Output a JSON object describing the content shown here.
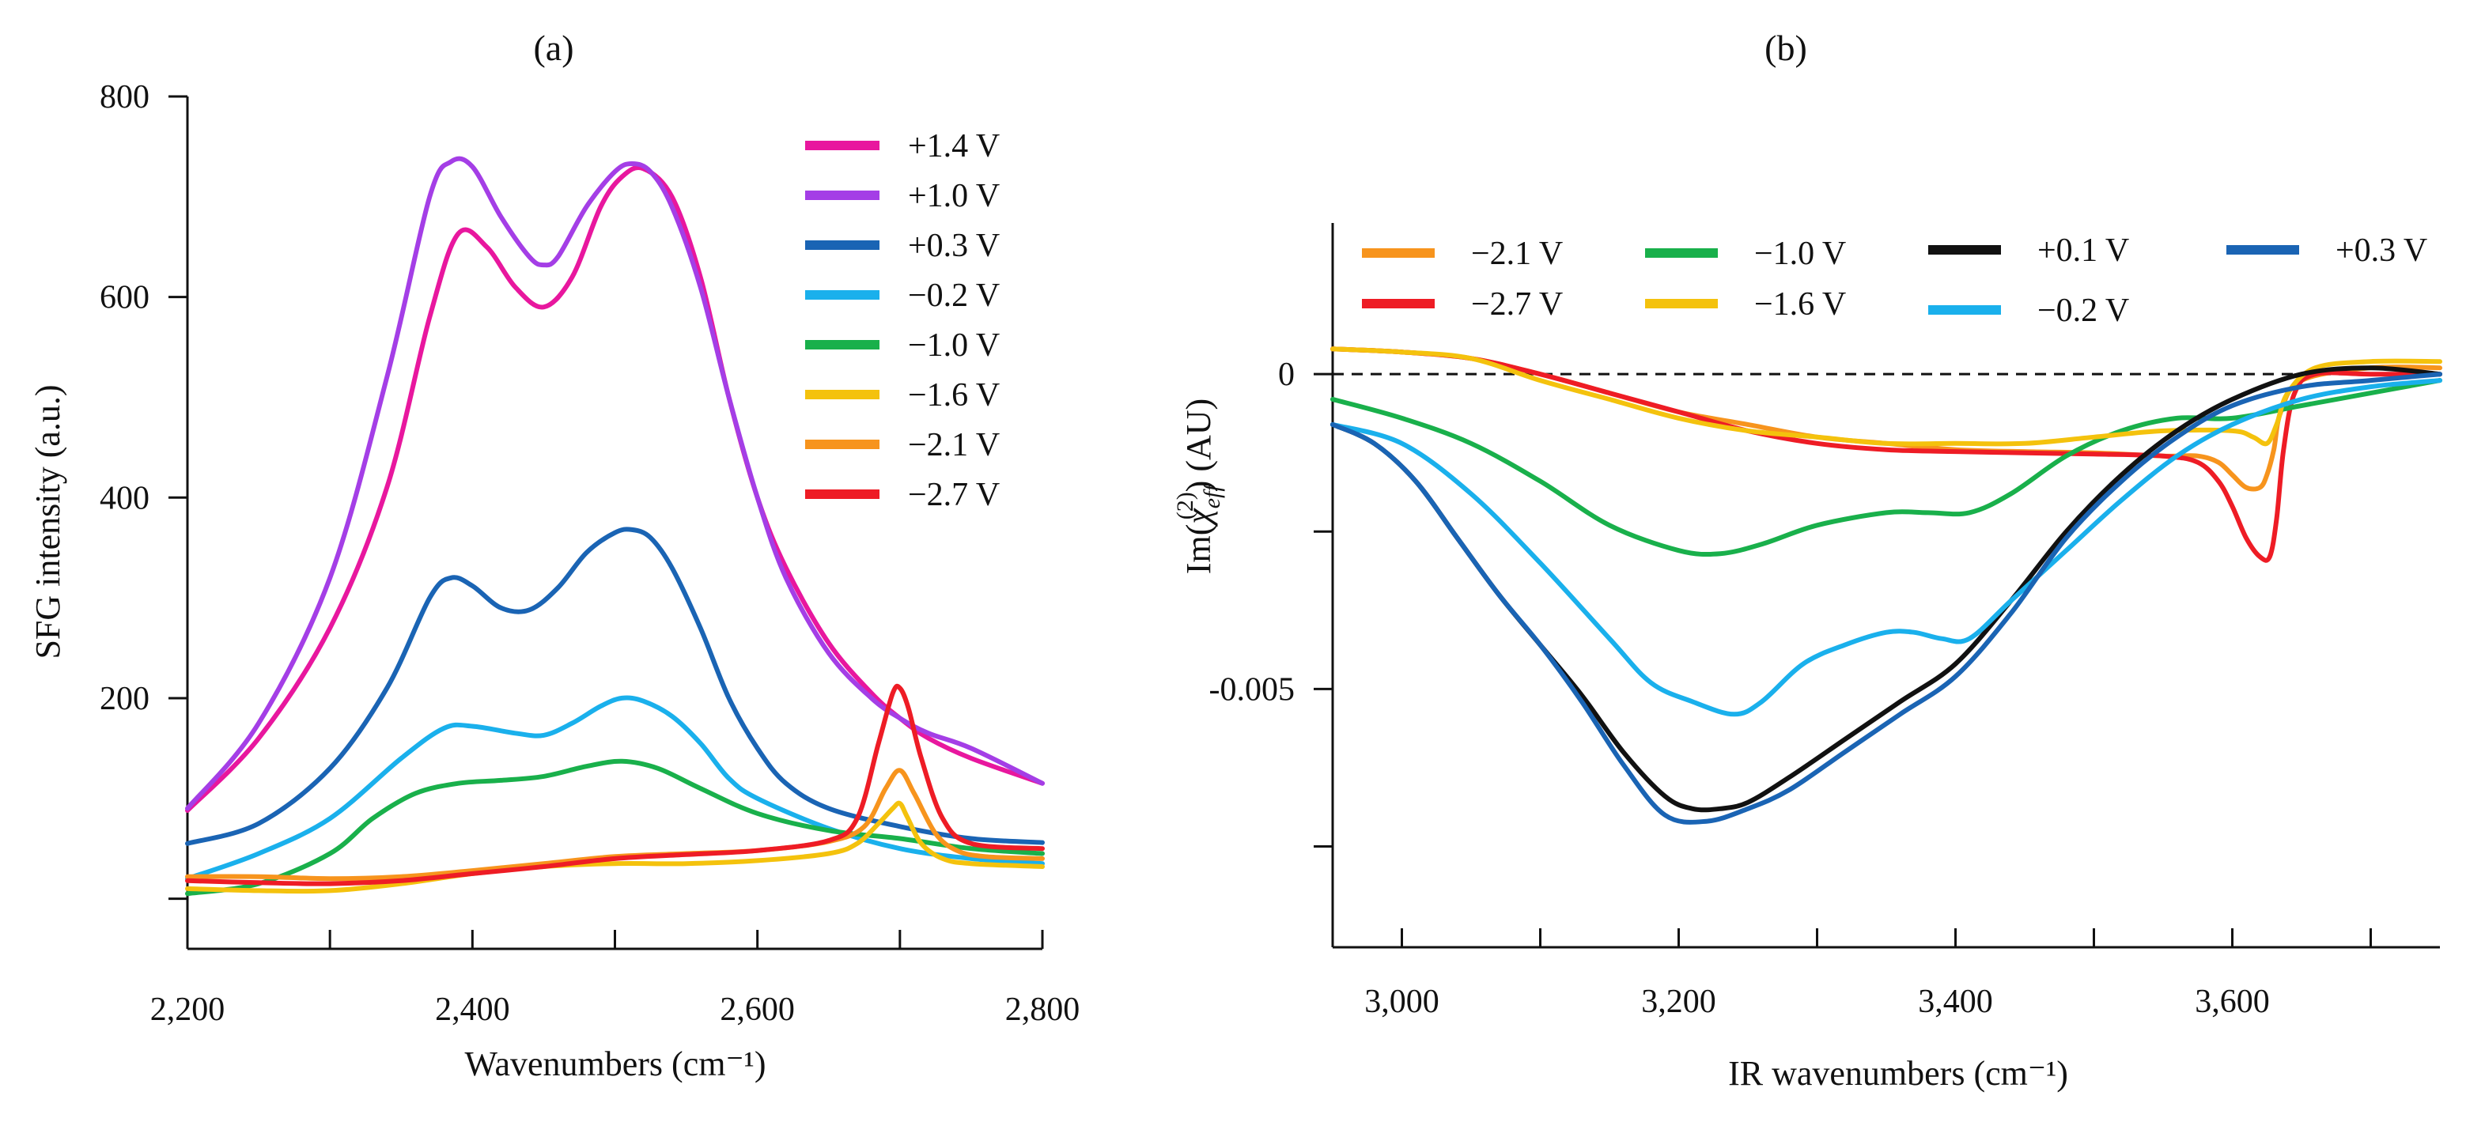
{
  "chart_data": [
    {
      "type": "line",
      "title": "(a)",
      "xlabel": "Wavenumbers (cm⁻¹)",
      "ylabel": "SFG intensity (a.u.)",
      "xlim": [
        2200,
        2800
      ],
      "ylim": [
        -50,
        800
      ],
      "xticks": [
        2200,
        2300,
        2400,
        2500,
        2600,
        2700,
        2800
      ],
      "xtick_labels": [
        "2,200",
        "",
        "2,400",
        "",
        "2,600",
        "",
        "2,800"
      ],
      "yticks": [
        0,
        200,
        400,
        600,
        800
      ],
      "ytick_labels": [
        "",
        "200",
        "400",
        "600",
        "800"
      ],
      "legend_position": "top-right",
      "series": [
        {
          "name": "+1.4 V",
          "color": "#e8179e",
          "x": [
            2200,
            2250,
            2300,
            2340,
            2370,
            2390,
            2410,
            2430,
            2450,
            2470,
            2490,
            2505,
            2520,
            2540,
            2560,
            2580,
            2600,
            2620,
            2650,
            2680,
            2700,
            2720,
            2750,
            2800
          ],
          "y": [
            88,
            160,
            270,
            410,
            580,
            663,
            650,
            610,
            590,
            620,
            690,
            720,
            728,
            700,
            620,
            500,
            400,
            330,
            255,
            205,
            180,
            160,
            140,
            115
          ]
        },
        {
          "name": "+1.0 V",
          "color": "#a43ee6",
          "x": [
            2200,
            2250,
            2300,
            2340,
            2370,
            2385,
            2400,
            2420,
            2440,
            2450,
            2460,
            2480,
            2500,
            2512,
            2525,
            2540,
            2560,
            2580,
            2600,
            2620,
            2650,
            2680,
            2700,
            2720,
            2750,
            2800
          ],
          "y": [
            90,
            175,
            320,
            520,
            700,
            735,
            730,
            680,
            640,
            632,
            640,
            690,
            725,
            733,
            725,
            690,
            610,
            500,
            400,
            320,
            245,
            200,
            180,
            165,
            150,
            115
          ]
        },
        {
          "name": "+0.3 V",
          "color": "#1a64b4",
          "x": [
            2200,
            2250,
            2300,
            2340,
            2370,
            2385,
            2400,
            2420,
            2440,
            2460,
            2480,
            2500,
            2512,
            2525,
            2540,
            2560,
            2580,
            2600,
            2620,
            2650,
            2700,
            2750,
            2800
          ],
          "y": [
            55,
            75,
            130,
            210,
            300,
            320,
            312,
            290,
            288,
            310,
            345,
            365,
            368,
            360,
            330,
            270,
            200,
            150,
            115,
            90,
            72,
            60,
            56
          ]
        },
        {
          "name": "−0.2 V",
          "color": "#1ab0ec",
          "x": [
            2200,
            2250,
            2300,
            2350,
            2380,
            2400,
            2430,
            2450,
            2470,
            2490,
            2505,
            2520,
            2540,
            2560,
            2580,
            2600,
            2650,
            2700,
            2750,
            2800
          ],
          "y": [
            20,
            45,
            80,
            140,
            170,
            172,
            165,
            163,
            175,
            192,
            200,
            197,
            182,
            155,
            120,
            100,
            70,
            50,
            40,
            35
          ]
        },
        {
          "name": "−1.0 V",
          "color": "#19b04b",
          "x": [
            2200,
            2250,
            2300,
            2330,
            2360,
            2390,
            2420,
            2450,
            2480,
            2505,
            2530,
            2560,
            2600,
            2650,
            2700,
            2750,
            2800
          ],
          "y": [
            5,
            15,
            45,
            80,
            105,
            115,
            118,
            122,
            132,
            137,
            130,
            110,
            85,
            68,
            60,
            50,
            45
          ]
        },
        {
          "name": "−1.6 V",
          "color": "#f4c20d",
          "x": [
            2200,
            2250,
            2300,
            2350,
            2400,
            2450,
            2500,
            2550,
            2600,
            2650,
            2670,
            2685,
            2695,
            2700,
            2705,
            2715,
            2730,
            2750,
            2800
          ],
          "y": [
            10,
            8,
            8,
            15,
            25,
            32,
            35,
            35,
            38,
            45,
            55,
            75,
            90,
            95,
            82,
            55,
            40,
            35,
            32
          ]
        },
        {
          "name": "−2.1 V",
          "color": "#f7941d",
          "x": [
            2200,
            2250,
            2300,
            2350,
            2400,
            2450,
            2500,
            2550,
            2600,
            2650,
            2675,
            2690,
            2700,
            2710,
            2725,
            2740,
            2760,
            2800
          ],
          "y": [
            22,
            22,
            20,
            22,
            28,
            35,
            42,
            45,
            48,
            57,
            72,
            110,
            128,
            105,
            65,
            48,
            42,
            40
          ]
        },
        {
          "name": "−2.7 V",
          "color": "#ee1c25",
          "x": [
            2200,
            2250,
            2300,
            2350,
            2400,
            2450,
            2500,
            2550,
            2600,
            2650,
            2670,
            2685,
            2695,
            2700,
            2706,
            2715,
            2730,
            2750,
            2800
          ],
          "y": [
            18,
            16,
            15,
            18,
            25,
            32,
            40,
            44,
            48,
            58,
            80,
            155,
            205,
            210,
            190,
            140,
            80,
            55,
            50
          ]
        }
      ]
    },
    {
      "type": "line",
      "title": "(b)",
      "xlabel": "IR wavenumbers (cm⁻¹)",
      "ylabel_prefix": "Im(",
      "ylabel_chi": "χ",
      "ylabel_sub": "eff",
      "ylabel_sup": "(2)",
      "ylabel_suffix": ") (AU)",
      "xlim": [
        2950,
        3750
      ],
      "ylim": [
        -0.0091,
        0.0024
      ],
      "xticks": [
        3000,
        3100,
        3200,
        3300,
        3400,
        3500,
        3600,
        3700
      ],
      "xtick_labels": [
        "3,000",
        "",
        "3,200",
        "",
        "3,400",
        "",
        "3,600",
        ""
      ],
      "yticks": [
        0,
        -0.0025,
        -0.005,
        -0.0075
      ],
      "ytick_labels": [
        "0",
        "",
        "-0.005",
        ""
      ],
      "zero_line": "dashed",
      "legend_position": "top",
      "series": [
        {
          "name": "−2.1 V",
          "color": "#f7941d",
          "x": [
            2950,
            3000,
            3050,
            3100,
            3150,
            3200,
            3250,
            3300,
            3350,
            3400,
            3450,
            3500,
            3550,
            3575,
            3590,
            3600,
            3610,
            3620,
            3625,
            3630,
            3635,
            3650,
            3700,
            3750
          ],
          "y": [
            0.0004,
            0.00035,
            0.00025,
            0.0,
            -0.0003,
            -0.0006,
            -0.0008,
            -0.001,
            -0.0011,
            -0.0012,
            -0.00123,
            -0.00125,
            -0.0013,
            -0.0013,
            -0.0014,
            -0.0016,
            -0.0018,
            -0.0018,
            -0.0016,
            -0.0012,
            -0.0006,
            -0.0001,
            0.0001,
            0.0001
          ]
        },
        {
          "name": "−2.7 V",
          "color": "#ee1c25",
          "x": [
            2950,
            3000,
            3050,
            3100,
            3150,
            3200,
            3250,
            3300,
            3350,
            3400,
            3450,
            3500,
            3550,
            3575,
            3590,
            3600,
            3610,
            3620,
            3627,
            3632,
            3637,
            3645,
            3660,
            3700,
            3750
          ],
          "y": [
            0.0004,
            0.00035,
            0.00025,
            0.0,
            -0.0003,
            -0.0006,
            -0.0009,
            -0.0011,
            -0.0012,
            -0.00123,
            -0.00125,
            -0.00127,
            -0.0013,
            -0.0014,
            -0.0017,
            -0.0021,
            -0.0026,
            -0.0029,
            -0.0029,
            -0.0023,
            -0.0012,
            -0.0003,
            0.0,
            0.0,
            0.0
          ]
        },
        {
          "name": "−1.0 V",
          "color": "#19b04b",
          "x": [
            2950,
            3000,
            3050,
            3100,
            3150,
            3200,
            3230,
            3260,
            3300,
            3350,
            3380,
            3410,
            3440,
            3480,
            3520,
            3560,
            3600,
            3650,
            3700,
            3750
          ],
          "y": [
            -0.0004,
            -0.0007,
            -0.0011,
            -0.0017,
            -0.0024,
            -0.0028,
            -0.00285,
            -0.0027,
            -0.0024,
            -0.0022,
            -0.0022,
            -0.0022,
            -0.0019,
            -0.0013,
            -0.0009,
            -0.0007,
            -0.0007,
            -0.0005,
            -0.0003,
            -0.0001
          ]
        },
        {
          "name": "−1.6 V",
          "color": "#f4c20d",
          "x": [
            2950,
            3000,
            3050,
            3100,
            3150,
            3200,
            3250,
            3300,
            3350,
            3400,
            3450,
            3500,
            3550,
            3600,
            3615,
            3625,
            3632,
            3640,
            3660,
            3700,
            3750
          ],
          "y": [
            0.0004,
            0.00035,
            0.00025,
            -0.0001,
            -0.0004,
            -0.0007,
            -0.0009,
            -0.001,
            -0.0011,
            -0.0011,
            -0.0011,
            -0.001,
            -0.0009,
            -0.0009,
            -0.001,
            -0.0011,
            -0.0008,
            -0.0003,
            0.0001,
            0.0002,
            0.0002
          ]
        },
        {
          "name": "+0.1 V",
          "color": "#111111",
          "x": [
            2950,
            2980,
            3010,
            3040,
            3070,
            3100,
            3130,
            3160,
            3190,
            3210,
            3230,
            3250,
            3280,
            3320,
            3360,
            3400,
            3440,
            3480,
            3520,
            3560,
            3600,
            3650,
            3700,
            3750
          ],
          "y": [
            -0.0008,
            -0.0011,
            -0.0017,
            -0.0026,
            -0.0035,
            -0.0043,
            -0.0051,
            -0.006,
            -0.0067,
            -0.0069,
            -0.0069,
            -0.0068,
            -0.0064,
            -0.0058,
            -0.0052,
            -0.0046,
            -0.0036,
            -0.0025,
            -0.0016,
            -0.0009,
            -0.0004,
            0.0,
            0.0001,
            0.0
          ]
        },
        {
          "name": "−0.2 V",
          "color": "#1ab0ec",
          "x": [
            2950,
            3000,
            3050,
            3100,
            3150,
            3180,
            3210,
            3240,
            3260,
            3290,
            3320,
            3350,
            3370,
            3390,
            3410,
            3440,
            3480,
            3520,
            3560,
            3600,
            3650,
            3700,
            3750
          ],
          "y": [
            -0.0008,
            -0.0011,
            -0.0019,
            -0.003,
            -0.0042,
            -0.0049,
            -0.0052,
            -0.0054,
            -0.0052,
            -0.0046,
            -0.0043,
            -0.0041,
            -0.0041,
            -0.0042,
            -0.0042,
            -0.0036,
            -0.0028,
            -0.002,
            -0.0013,
            -0.0008,
            -0.0004,
            -0.0002,
            -0.0001
          ]
        },
        {
          "name": "+0.3 V",
          "color": "#1a64b4",
          "x": [
            2950,
            2980,
            3010,
            3040,
            3070,
            3100,
            3130,
            3160,
            3190,
            3220,
            3250,
            3280,
            3320,
            3360,
            3400,
            3440,
            3480,
            3520,
            3560,
            3600,
            3650,
            3700,
            3750
          ],
          "y": [
            -0.0008,
            -0.0011,
            -0.0017,
            -0.0026,
            -0.0035,
            -0.0043,
            -0.0052,
            -0.0062,
            -0.007,
            -0.0071,
            -0.0069,
            -0.0066,
            -0.006,
            -0.0054,
            -0.0048,
            -0.0038,
            -0.0026,
            -0.0017,
            -0.001,
            -0.0005,
            -0.0002,
            -0.0001,
            0.0
          ]
        }
      ]
    }
  ]
}
